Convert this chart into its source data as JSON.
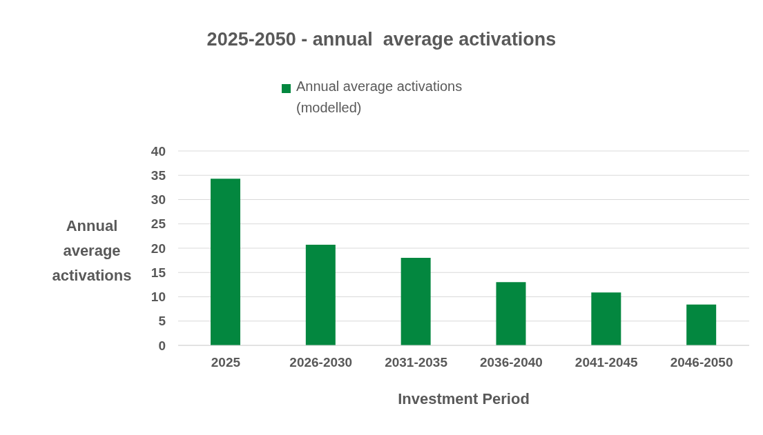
{
  "chart_data": {
    "type": "bar",
    "title": "2025-2050 - annual  average activations",
    "xlabel": "Investment Period",
    "ylabel": "Annual average activations",
    "categories": [
      "2025",
      "2026-2030",
      "2031-2035",
      "2036-2040",
      "2041-2045",
      "2046-2050"
    ],
    "series": [
      {
        "name": "Annual average activations (modelled)",
        "color": "#03873f",
        "values": [
          34.3,
          20.7,
          18.0,
          13.0,
          10.9,
          8.4
        ]
      }
    ],
    "ylim": [
      0,
      40
    ],
    "yticks": [
      0,
      5,
      10,
      15,
      20,
      25,
      30,
      35,
      40
    ],
    "grid": "y",
    "legend": "top"
  }
}
